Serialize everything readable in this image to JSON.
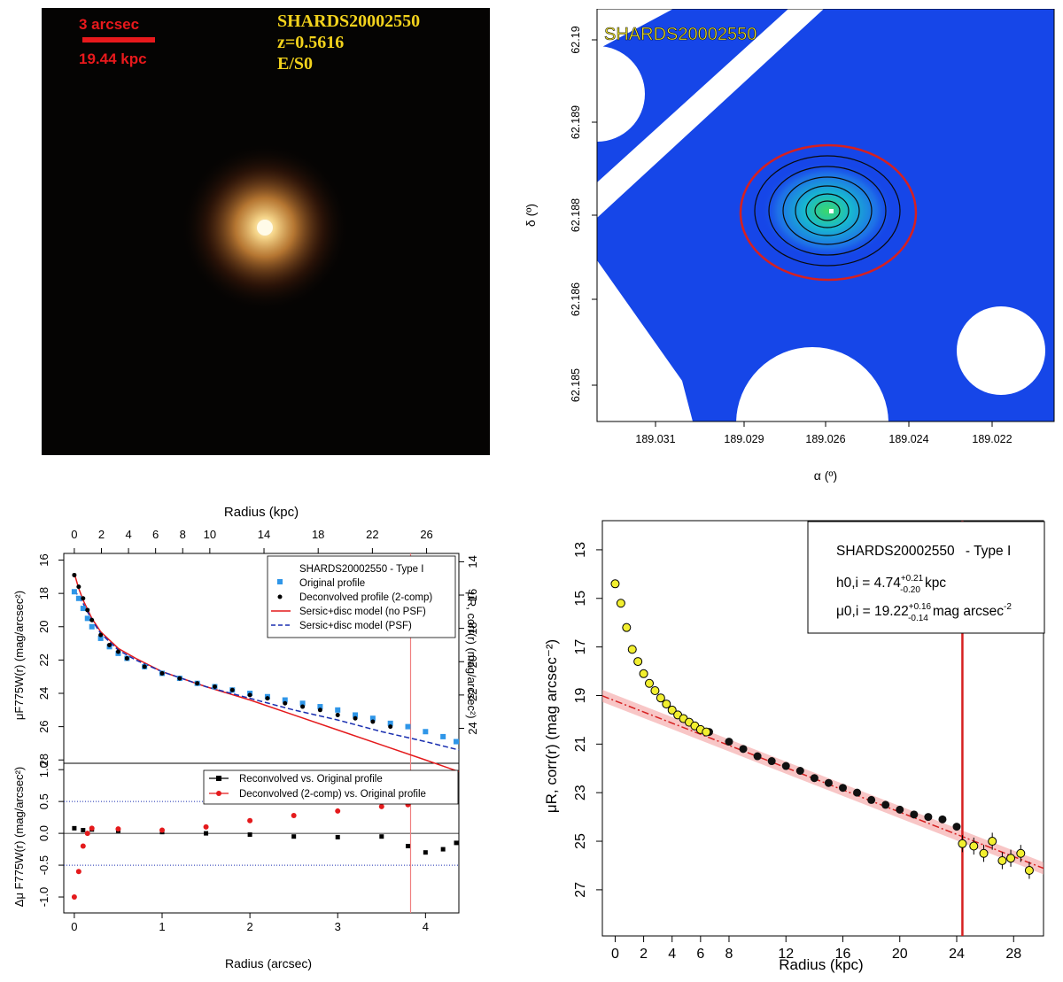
{
  "image_panel": {
    "scale_label": "3 arcsec",
    "kpc_label": "19.44 kpc",
    "object_id": "SHARDS20002550",
    "redshift": "z=0.5616",
    "morph_type": "E/S0",
    "colors": {
      "background": "#050403",
      "scalebar": "#e8191c",
      "label": "#f2d21c",
      "core": "#fff3c0",
      "halo": "#d98a3a"
    }
  },
  "chart_data": [
    {
      "type": "scatter",
      "title": "SHARDS20002550",
      "xlabel": "α (º)",
      "ylabel": "δ (º)",
      "x_ticks": [
        "189.031",
        "189.029",
        "189.026",
        "189.024",
        "189.022"
      ],
      "y_ticks": [
        "62.19",
        "62.189",
        "62.188",
        "62.186",
        "62.185"
      ],
      "xlim": [
        189.0325,
        189.0207
      ],
      "ylim": [
        62.1846,
        62.1906
      ],
      "galaxy_center": {
        "ra": 189.026,
        "dec": 62.1881
      },
      "ellipse_color": "#d62020",
      "map_color": "#1646e8"
    },
    {
      "type": "scatter",
      "title": "SHARDS20002550 - Type I",
      "xlabel": "Radius (arcsec)",
      "x2label": "Radius (kpc)",
      "ylabel": "μF775W(r) (mag/arcsec²)",
      "y2label": "μR, corr(r) (mag/arcsec²)",
      "ylabel_residual": "Δμ F775W(r) (mag/arcsec²)",
      "x_ticks": [
        0,
        1,
        2,
        3,
        4
      ],
      "x2_ticks": [
        0,
        2,
        4,
        6,
        8,
        10,
        14,
        18,
        22,
        26
      ],
      "y_ticks": [
        16,
        18,
        20,
        22,
        24,
        26,
        28
      ],
      "y2_ticks": [
        14,
        16,
        18,
        20,
        22,
        24
      ],
      "residual_ticks": [
        "1.0",
        "0.5",
        "0.0",
        "-0.5",
        "-1.0"
      ],
      "xlim": [
        -0.12,
        4.38
      ],
      "ylim": [
        28.2,
        15.6
      ],
      "residual_ylim": [
        -1.25,
        1.1
      ],
      "legend": [
        "SHARDS20002550 - Type I",
        "Original profile",
        "Deconvolved profile (2-comp)",
        "Sersic+disc model (no PSF)",
        "Sersic+disc model (PSF)"
      ],
      "residual_legend": [
        "Reconvolved vs. Original profile",
        "Deconvolved (2-comp) vs. Original profile"
      ],
      "break_radius_arcsec": 3.83,
      "series": [
        {
          "name": "Original profile",
          "color": "#2f96e8",
          "x": [
            0.0,
            0.05,
            0.1,
            0.15,
            0.2,
            0.3,
            0.4,
            0.5,
            0.6,
            0.8,
            1.0,
            1.2,
            1.4,
            1.6,
            1.8,
            2.0,
            2.2,
            2.4,
            2.6,
            2.8,
            3.0,
            3.2,
            3.4,
            3.6,
            3.8,
            4.0,
            4.2,
            4.35
          ],
          "y": [
            17.9,
            18.3,
            18.9,
            19.5,
            20.0,
            20.7,
            21.2,
            21.6,
            21.9,
            22.4,
            22.8,
            23.1,
            23.4,
            23.6,
            23.8,
            24.0,
            24.2,
            24.4,
            24.6,
            24.8,
            25.0,
            25.3,
            25.5,
            25.8,
            26.0,
            26.3,
            26.6,
            26.9
          ]
        },
        {
          "name": "Deconvolved profile (2-comp)",
          "color": "#000000",
          "x": [
            0.0,
            0.05,
            0.1,
            0.15,
            0.2,
            0.3,
            0.4,
            0.5,
            0.6,
            0.8,
            1.0,
            1.2,
            1.4,
            1.6,
            1.8,
            2.0,
            2.2,
            2.4,
            2.6,
            2.8,
            3.0,
            3.2,
            3.4,
            3.6
          ],
          "y": [
            16.9,
            17.6,
            18.3,
            19.0,
            19.6,
            20.5,
            21.1,
            21.5,
            21.9,
            22.4,
            22.8,
            23.1,
            23.4,
            23.6,
            23.8,
            24.1,
            24.3,
            24.6,
            24.8,
            25.0,
            25.3,
            25.5,
            25.7,
            26.0
          ]
        },
        {
          "name": "Sersic+disc model (no PSF)",
          "color": "#e41a1c",
          "x": [
            0.0,
            0.05,
            0.1,
            0.2,
            0.3,
            0.5,
            0.7,
            1.0,
            1.5,
            2.0,
            2.5,
            3.0,
            3.5,
            4.0,
            4.38
          ],
          "y": [
            16.8,
            17.7,
            18.4,
            19.5,
            20.3,
            21.3,
            21.9,
            22.7,
            23.6,
            24.4,
            25.3,
            26.2,
            27.1,
            28.0,
            28.7
          ]
        },
        {
          "name": "Sersic+disc model (PSF)",
          "color": "#1a2fb0",
          "x": [
            0.0,
            0.1,
            0.2,
            0.3,
            0.5,
            0.7,
            1.0,
            1.5,
            2.0,
            2.5,
            3.0,
            3.5,
            4.0,
            4.38
          ],
          "y": [
            17.8,
            18.6,
            19.6,
            20.4,
            21.4,
            22.0,
            22.7,
            23.6,
            24.3,
            25.0,
            25.6,
            26.3,
            26.9,
            27.4
          ]
        },
        {
          "name": "Reconvolved vs. Original profile",
          "color": "#000000",
          "x": [
            0.0,
            0.1,
            0.2,
            0.5,
            1.0,
            1.5,
            2.0,
            2.5,
            3.0,
            3.5,
            3.8,
            4.0,
            4.2,
            4.35
          ],
          "y": [
            0.08,
            0.05,
            0.06,
            0.04,
            0.02,
            0.0,
            -0.02,
            -0.05,
            -0.06,
            -0.05,
            -0.2,
            -0.3,
            -0.25,
            -0.15
          ]
        },
        {
          "name": "Deconvolved (2-comp) vs. Original profile",
          "color": "#e41a1c",
          "x": [
            0.0,
            0.05,
            0.1,
            0.15,
            0.2,
            0.5,
            1.0,
            1.5,
            2.0,
            2.5,
            3.0,
            3.5,
            3.8
          ],
          "y": [
            -1.0,
            -0.6,
            -0.2,
            0.0,
            0.08,
            0.07,
            0.05,
            0.1,
            0.2,
            0.28,
            0.35,
            0.42,
            0.45
          ]
        }
      ]
    },
    {
      "type": "scatter",
      "title": "SHARDS20002550 - Type I",
      "xlabel": "Radius (kpc)",
      "ylabel": "μR, corr(r) (mag arcsec⁻²)",
      "x_ticks": [
        0,
        2,
        4,
        6,
        8,
        12,
        16,
        20,
        24,
        28
      ],
      "y_ticks": [
        13,
        15,
        17,
        19,
        21,
        23,
        25,
        27
      ],
      "xlim": [
        -0.9,
        30.1
      ],
      "ylim": [
        28.9,
        11.8
      ],
      "annotations": {
        "object": "SHARDS20002550",
        "type": "- Type I",
        "h_line": "h0,i = 4.74",
        "h_sup": "+0.21",
        "h_sub": "-0.20",
        "h_unit": "kpc",
        "mu_line": "μ0,i = 19.22",
        "mu_sup": "+0.16",
        "mu_sub": "-0.14",
        "mu_unit": "mag arcsec",
        "mu_exp": "-2"
      },
      "break_radius_kpc": 24.4,
      "fit": {
        "h_kpc": 4.74,
        "mu0": 19.22,
        "color": "#d62020"
      },
      "series": [
        {
          "name": "Inner excess (yellow)",
          "color": "#f2ef30",
          "x": [
            0.0,
            0.4,
            0.8,
            1.2,
            1.6,
            2.0,
            2.4,
            2.8,
            3.2,
            3.6,
            4.0,
            4.4,
            4.8,
            5.2,
            5.6,
            6.0,
            6.4
          ],
          "y": [
            14.4,
            15.2,
            16.2,
            17.1,
            17.6,
            18.1,
            18.5,
            18.8,
            19.1,
            19.35,
            19.6,
            19.8,
            19.95,
            20.1,
            20.25,
            20.4,
            20.5
          ]
        },
        {
          "name": "Disc profile (black)",
          "color": "#000000",
          "x": [
            6.6,
            8.0,
            9.0,
            10.0,
            11.0,
            12.0,
            13.0,
            14.0,
            15.0,
            16.0,
            17.0,
            18.0,
            19.0,
            20.0,
            21.0,
            22.0,
            23.0,
            24.0
          ],
          "y": [
            20.5,
            20.9,
            21.2,
            21.5,
            21.7,
            21.9,
            22.1,
            22.4,
            22.6,
            22.8,
            23.0,
            23.3,
            23.5,
            23.7,
            23.9,
            24.0,
            24.1,
            24.4
          ]
        },
        {
          "name": "Outer points (yellow)",
          "color": "#f2ef30",
          "x": [
            24.4,
            25.2,
            25.9,
            26.5,
            27.2,
            27.8,
            28.5,
            29.1
          ],
          "y": [
            25.1,
            25.2,
            25.5,
            25.0,
            25.8,
            25.7,
            25.5,
            26.2
          ]
        }
      ]
    }
  ]
}
